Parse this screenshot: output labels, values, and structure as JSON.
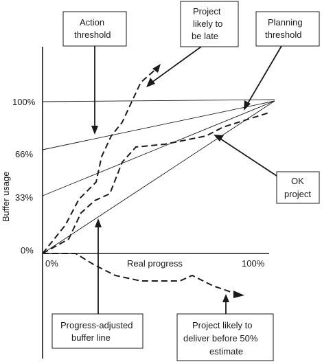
{
  "axis": {
    "ylabel": "Buffer usage",
    "xlabel": "Real progress",
    "y_ticks": [
      "100%",
      "66%",
      "33%",
      "0%"
    ],
    "x_ticks": [
      "0%",
      "100%"
    ]
  },
  "callouts": {
    "action_threshold": [
      "Action",
      "threshold"
    ],
    "project_late": [
      "Project",
      "likely to",
      "be late"
    ],
    "planning_threshold": [
      "Planning",
      "threshold"
    ],
    "ok_project": [
      "OK",
      "project"
    ],
    "progress_adjusted": [
      "Progress-adjusted",
      "buffer line"
    ],
    "deliver_before": [
      "Project likely to",
      "deliver before 50%",
      "estimate"
    ]
  }
}
